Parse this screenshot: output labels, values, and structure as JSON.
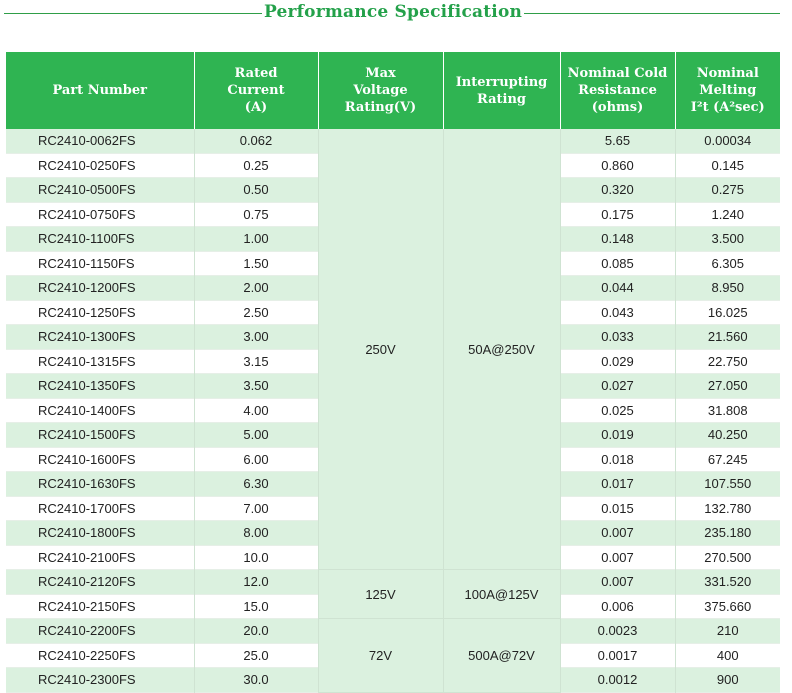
{
  "title": "Performance Specification",
  "headers": {
    "part_number": "Part Number",
    "rated_current": [
      "Rated",
      "Current",
      "(A)"
    ],
    "max_voltage": [
      "Max",
      "Voltage",
      "Rating(V)"
    ],
    "interrupting": [
      "Interrupting",
      "Rating"
    ],
    "cold_resistance": [
      "Nominal Cold",
      "Resistance",
      "(ohms)"
    ],
    "melting": [
      "Nominal",
      "Melting",
      "I²t (A²sec)"
    ]
  },
  "merged": {
    "voltage_a": "250V",
    "voltage_b": "125V",
    "voltage_c": "72V",
    "interrupt_a": "50A@250V",
    "interrupt_b": "100A@125V",
    "interrupt_c": "500A@72V"
  },
  "rows": [
    {
      "part": "RC2410-0062FS",
      "current": "0.062",
      "resistance": "5.65",
      "melting": "0.00034"
    },
    {
      "part": "RC2410-0250FS",
      "current": "0.25",
      "resistance": "0.860",
      "melting": "0.145"
    },
    {
      "part": "RC2410-0500FS",
      "current": "0.50",
      "resistance": "0.320",
      "melting": "0.275"
    },
    {
      "part": "RC2410-0750FS",
      "current": "0.75",
      "resistance": "0.175",
      "melting": "1.240"
    },
    {
      "part": "RC2410-1100FS",
      "current": "1.00",
      "resistance": "0.148",
      "melting": "3.500"
    },
    {
      "part": "RC2410-1150FS",
      "current": "1.50",
      "resistance": "0.085",
      "melting": "6.305"
    },
    {
      "part": "RC2410-1200FS",
      "current": "2.00",
      "resistance": "0.044",
      "melting": "8.950"
    },
    {
      "part": "RC2410-1250FS",
      "current": "2.50",
      "resistance": "0.043",
      "melting": "16.025"
    },
    {
      "part": "RC2410-1300FS",
      "current": "3.00",
      "resistance": "0.033",
      "melting": "21.560"
    },
    {
      "part": "RC2410-1315FS",
      "current": "3.15",
      "resistance": "0.029",
      "melting": "22.750"
    },
    {
      "part": "RC2410-1350FS",
      "current": "3.50",
      "resistance": "0.027",
      "melting": "27.050"
    },
    {
      "part": "RC2410-1400FS",
      "current": "4.00",
      "resistance": "0.025",
      "melting": "31.808"
    },
    {
      "part": "RC2410-1500FS",
      "current": "5.00",
      "resistance": "0.019",
      "melting": "40.250"
    },
    {
      "part": "RC2410-1600FS",
      "current": "6.00",
      "resistance": "0.018",
      "melting": "67.245"
    },
    {
      "part": "RC2410-1630FS",
      "current": "6.30",
      "resistance": "0.017",
      "melting": "107.550"
    },
    {
      "part": "RC2410-1700FS",
      "current": "7.00",
      "resistance": "0.015",
      "melting": "132.780"
    },
    {
      "part": "RC2410-1800FS",
      "current": "8.00",
      "resistance": "0.007",
      "melting": "235.180"
    },
    {
      "part": "RC2410-2100FS",
      "current": "10.0",
      "resistance": "0.007",
      "melting": "270.500"
    },
    {
      "part": "RC2410-2120FS",
      "current": "12.0",
      "resistance": "0.007",
      "melting": "331.520"
    },
    {
      "part": "RC2410-2150FS",
      "current": "15.0",
      "resistance": "0.006",
      "melting": "375.660"
    },
    {
      "part": "RC2410-2200FS",
      "current": "20.0",
      "resistance": "0.0023",
      "melting": "210"
    },
    {
      "part": "RC2410-2250FS",
      "current": "25.0",
      "resistance": "0.0017",
      "melting": "400"
    },
    {
      "part": "RC2410-2300FS",
      "current": "30.0",
      "resistance": "0.0012",
      "melting": "900"
    }
  ]
}
